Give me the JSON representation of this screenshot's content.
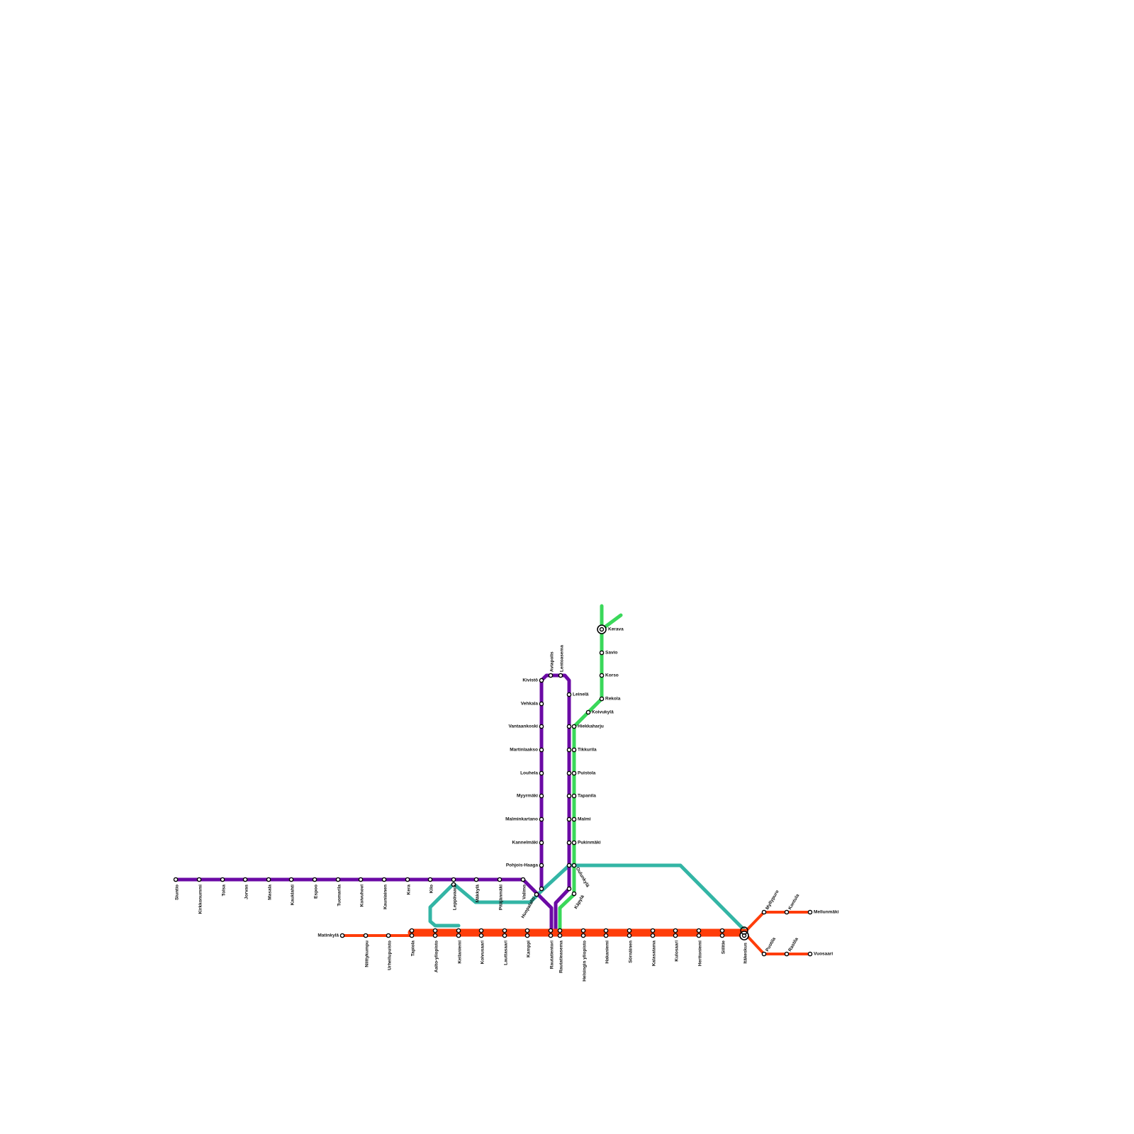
{
  "stations": [
    "Siuntio",
    "Kirkkonummi",
    "Tolsa",
    "Jorvas",
    "Masala",
    "Kauklahti",
    "Espoo",
    "Tuomarila",
    "Koivuhovi",
    "Kauniainen",
    "Kera",
    "Kilo",
    "Leppävaara",
    "Mäkkylä",
    "Pitäjänmäki",
    "Valimo",
    "Huopalahti",
    "Kivistö",
    "Vehkala",
    "Vantaankoski",
    "Martinlaakso",
    "Louhela",
    "Myyrmäki",
    "Malminkartano",
    "Kannelmäki",
    "Pohjois-Haaga",
    "Aviapolis",
    "Lentoasema",
    "Leinelä",
    "Kerava",
    "Savio",
    "Korso",
    "Rekola",
    "Koivukylä",
    "Hiekkaharju",
    "Tikkurila",
    "Puistola",
    "Tapanila",
    "Malmi",
    "Pukinmäki",
    "Oulunkylä",
    "Käpylä",
    "Matinkylä",
    "Niittykumpu",
    "Urheilupuisto",
    "Tapiola",
    "Aalto-yliopisto",
    "Keilaniemi",
    "Koivusaari",
    "Lauttasaari",
    "Kamppi",
    "Rautatientori",
    "Rautatieasema",
    "Helsingin yliopisto",
    "Hakaniemi",
    "Sörnäinen",
    "Kalasatama",
    "Kulosaari",
    "Herttoniemi",
    "Siilitie",
    "Itäkeskus",
    "Myllypuro",
    "Kontula",
    "Mellunmäki",
    "Puotila",
    "Rastila",
    "Vuosaari"
  ]
}
